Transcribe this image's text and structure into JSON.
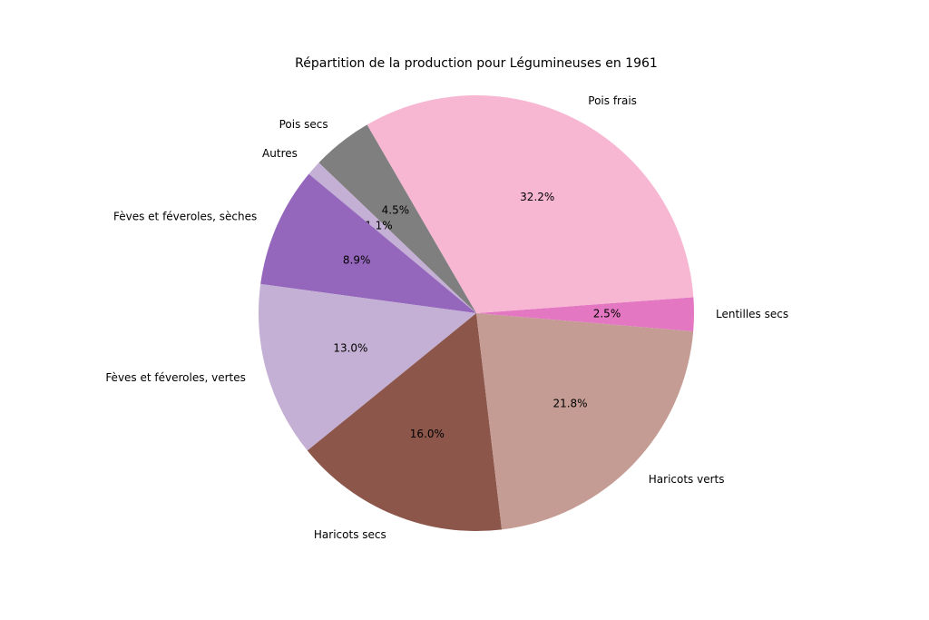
{
  "chart_data": {
    "type": "pie",
    "title": "Répartition de la production pour Légumineuses en 1961",
    "categories": [
      "Lentilles secs",
      "Pois frais",
      "Pois secs",
      "Autres",
      "Fèves et féveroles, sèches",
      "Fèves et féveroles, vertes",
      "Haricots secs",
      "Haricots verts"
    ],
    "values": [
      2.5,
      32.2,
      4.5,
      1.1,
      8.9,
      13.0,
      16.0,
      21.8
    ],
    "value_labels": [
      "2.5%",
      "32.2%",
      "4.5%",
      "1.1%",
      "8.9%",
      "13.0%",
      "16.0%",
      "21.8%"
    ],
    "colors": [
      "#e377c2",
      "#f7b6d2",
      "#7f7f7f",
      "#c5b0d5",
      "#9467bd",
      "#c5b0d5",
      "#8c564b",
      "#c49c94"
    ]
  }
}
